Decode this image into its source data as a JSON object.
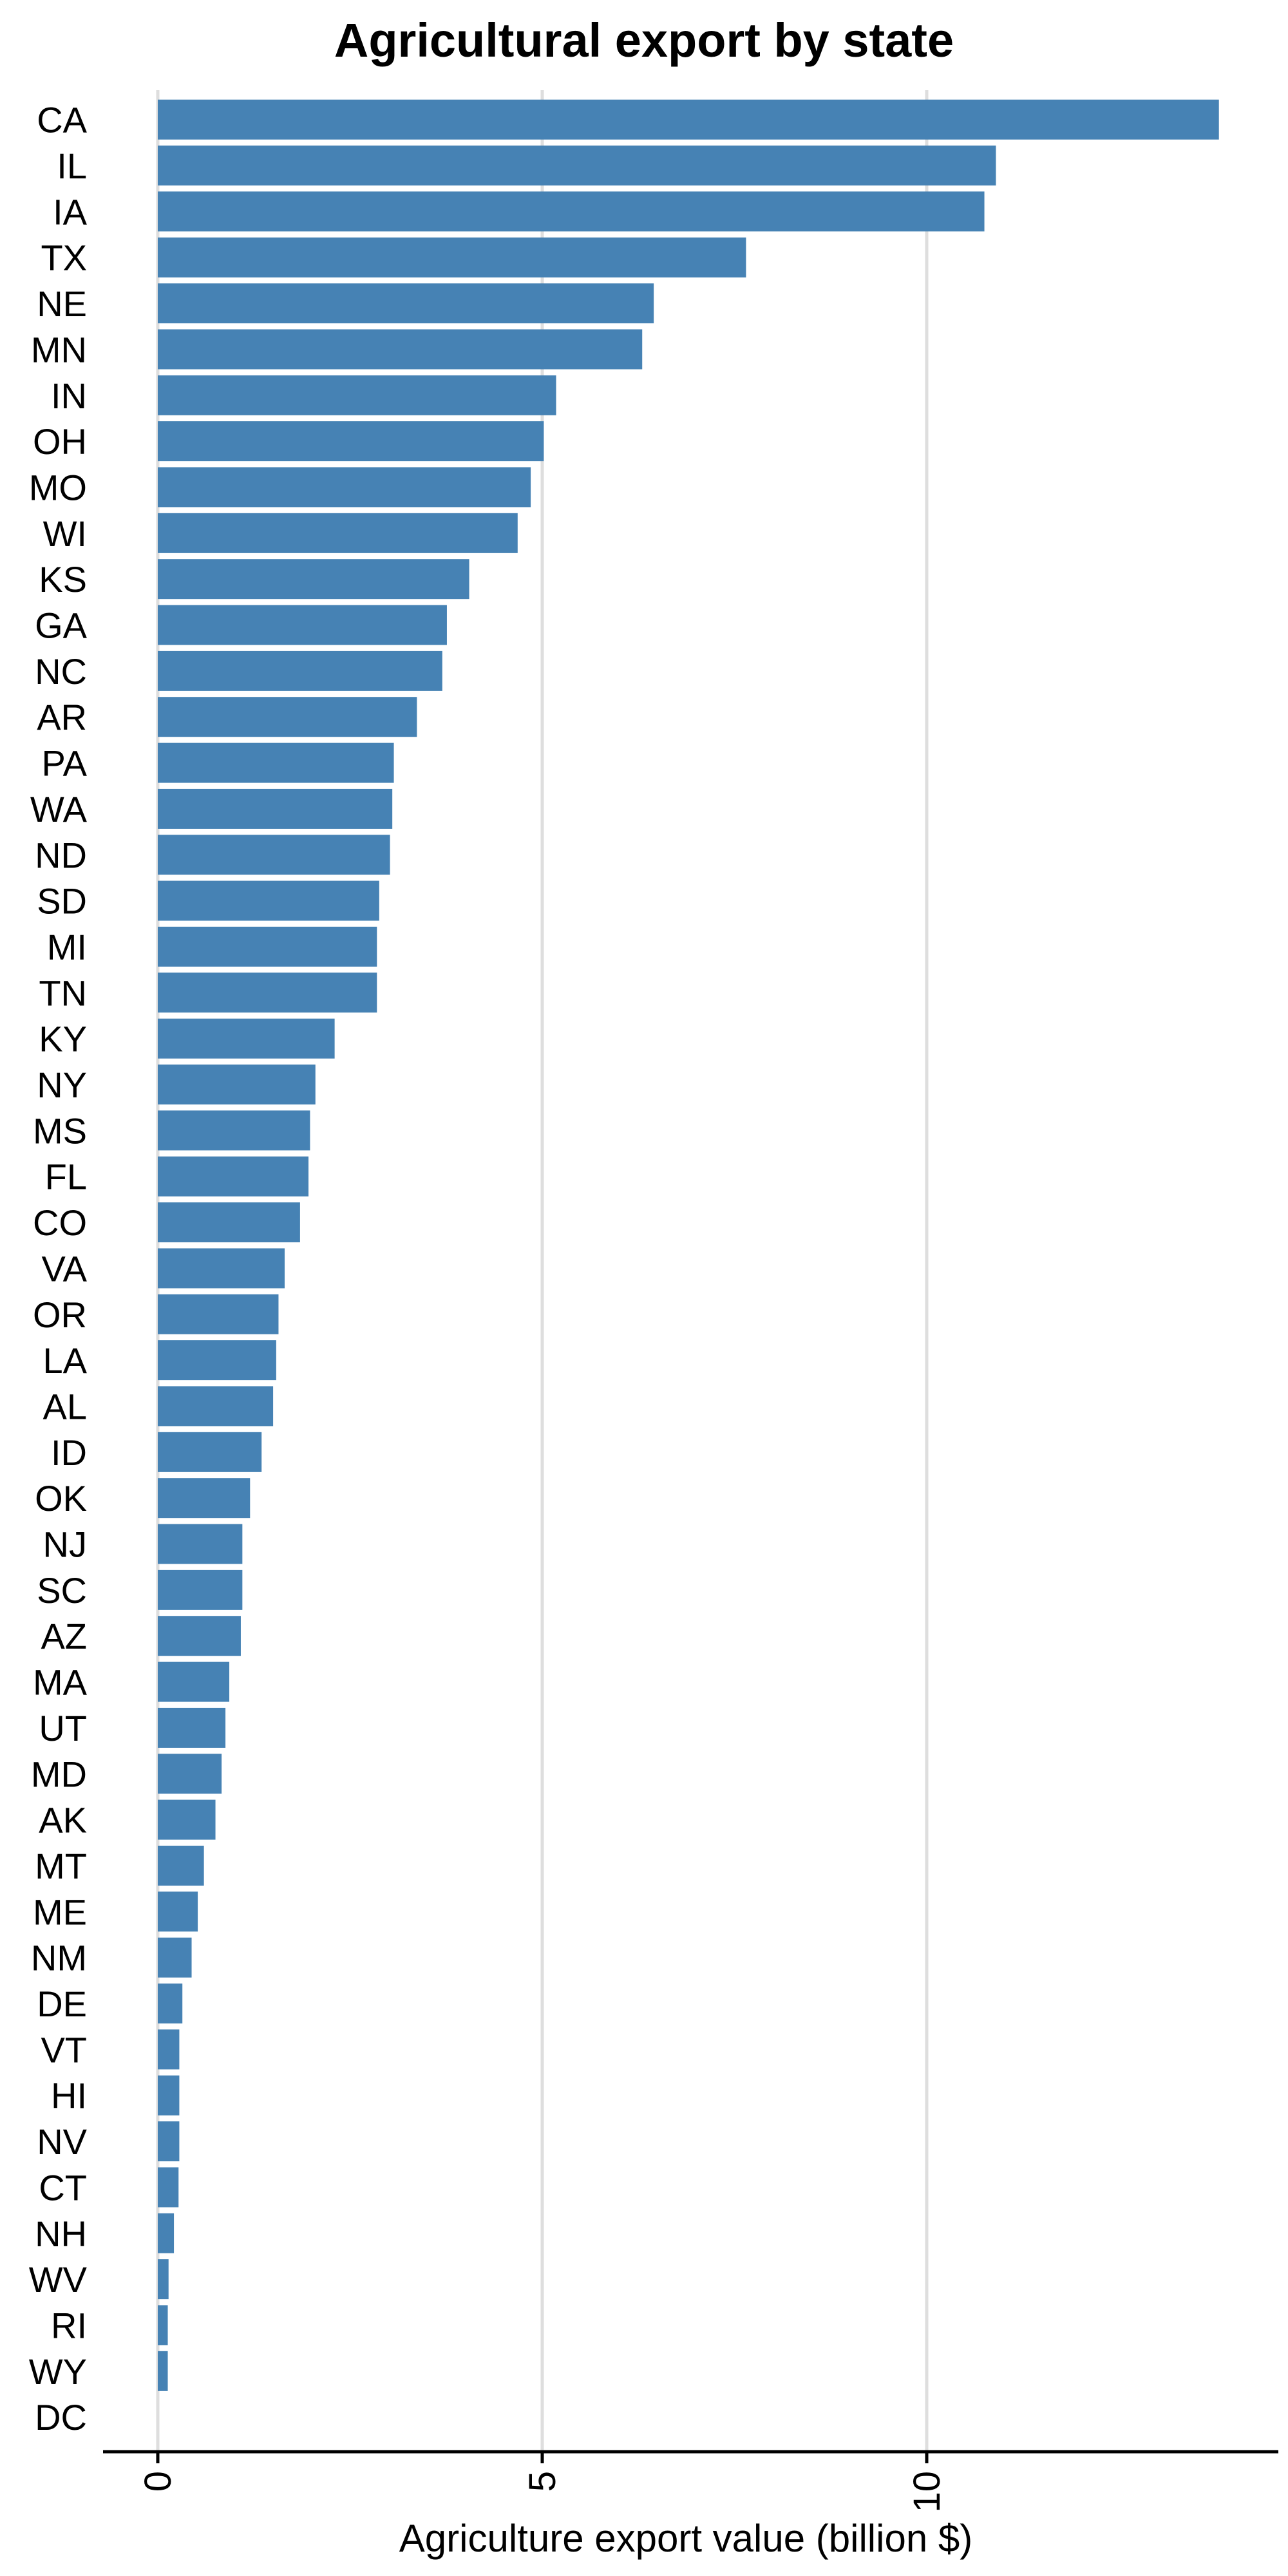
{
  "chart_data": {
    "type": "bar",
    "orientation": "horizontal",
    "title": "Agricultural export by state",
    "xlabel": "Agriculture export value (billion $)",
    "ylabel": "",
    "xlim": [
      0,
      14
    ],
    "x_ticks": [
      0,
      5,
      10
    ],
    "x_tick_labels": [
      "0",
      "5",
      "10"
    ],
    "grid": "vertical major lines",
    "legend": "none",
    "bar_color": "#4682b4",
    "categories": [
      "CA",
      "IL",
      "IA",
      "TX",
      "NE",
      "MN",
      "IN",
      "OH",
      "MO",
      "WI",
      "KS",
      "GA",
      "NC",
      "AR",
      "PA",
      "WA",
      "ND",
      "SD",
      "MI",
      "TN",
      "KY",
      "NY",
      "MS",
      "FL",
      "CO",
      "VA",
      "OR",
      "LA",
      "AL",
      "ID",
      "OK",
      "NJ",
      "SC",
      "AZ",
      "MA",
      "UT",
      "MD",
      "AK",
      "MT",
      "ME",
      "NM",
      "DE",
      "VT",
      "HI",
      "NV",
      "CT",
      "NH",
      "WV",
      "RI",
      "WY",
      "DC"
    ],
    "values": [
      13.8,
      10.9,
      10.75,
      7.65,
      6.45,
      6.3,
      5.18,
      5.02,
      4.85,
      4.68,
      4.05,
      3.76,
      3.7,
      3.37,
      3.07,
      3.05,
      3.02,
      2.88,
      2.85,
      2.85,
      2.3,
      2.05,
      1.98,
      1.96,
      1.85,
      1.65,
      1.57,
      1.54,
      1.5,
      1.35,
      1.2,
      1.1,
      1.1,
      1.08,
      0.93,
      0.88,
      0.83,
      0.75,
      0.6,
      0.52,
      0.44,
      0.32,
      0.28,
      0.28,
      0.28,
      0.27,
      0.21,
      0.14,
      0.13,
      0.13,
      0.0
    ]
  }
}
